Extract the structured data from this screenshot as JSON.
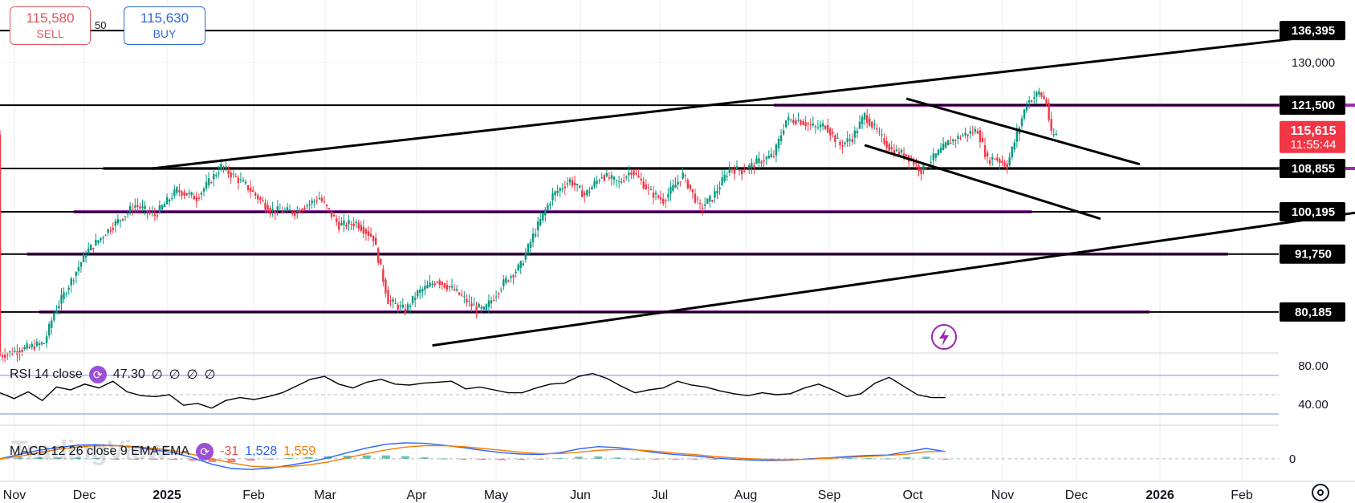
{
  "trade": {
    "sell_price": "115,580",
    "sell_label": "SELL",
    "buy_price": "115,630",
    "buy_label": "BUY",
    "spread": "50"
  },
  "chart_data": {
    "type": "candlestick",
    "y_range": [
      72000,
      142500
    ],
    "x_labels": [
      "Nov",
      "Dec",
      "2025",
      "Feb",
      "Mar",
      "Apr",
      "May",
      "Jun",
      "Jul",
      "Aug",
      "Sep",
      "Oct",
      "Nov",
      "Dec",
      "2026",
      "Feb"
    ],
    "x_bold_labels": [
      "2025",
      "2026"
    ],
    "y_ticks": [
      130000,
      91750
    ],
    "y_tick_labels": [
      "130,000",
      "91,750"
    ],
    "horizontal_levels": [
      {
        "value": 136395,
        "label": "136,395"
      },
      {
        "value": 121500,
        "label": "121,500"
      },
      {
        "value": 108855,
        "label": "108,855"
      },
      {
        "value": 100195,
        "label": "100,195"
      },
      {
        "value": 91750,
        "label": "91,750"
      },
      {
        "value": 80185,
        "label": "80,185"
      }
    ],
    "current_price": {
      "value": 115615,
      "label": "115,615",
      "countdown": "11:55:44",
      "color": "#f23645"
    },
    "candle_anchors": [
      [
        0,
        71500
      ],
      [
        18,
        74000
      ],
      [
        22,
        80000
      ],
      [
        35,
        92000
      ],
      [
        45,
        97000
      ],
      [
        55,
        101500
      ],
      [
        63,
        99500
      ],
      [
        72,
        104500
      ],
      [
        80,
        103000
      ],
      [
        90,
        109200
      ],
      [
        100,
        105500
      ],
      [
        110,
        100500
      ],
      [
        120,
        100200
      ],
      [
        130,
        103000
      ],
      [
        138,
        97500
      ],
      [
        145,
        98000
      ],
      [
        152,
        95000
      ],
      [
        158,
        82500
      ],
      [
        165,
        80500
      ],
      [
        170,
        84000
      ],
      [
        178,
        86500
      ],
      [
        185,
        84500
      ],
      [
        192,
        81500
      ],
      [
        197,
        80500
      ],
      [
        205,
        86000
      ],
      [
        212,
        89500
      ],
      [
        218,
        96500
      ],
      [
        225,
        103500
      ],
      [
        232,
        106500
      ],
      [
        238,
        103500
      ],
      [
        245,
        107500
      ],
      [
        252,
        106000
      ],
      [
        257,
        108500
      ],
      [
        265,
        104000
      ],
      [
        270,
        102500
      ],
      [
        278,
        107500
      ],
      [
        285,
        101000
      ],
      [
        290,
        103000
      ],
      [
        297,
        108800
      ],
      [
        302,
        108400
      ],
      [
        310,
        110500
      ],
      [
        315,
        111500
      ],
      [
        320,
        118500
      ],
      [
        325,
        118500
      ],
      [
        332,
        117000
      ],
      [
        336,
        117500
      ],
      [
        342,
        113500
      ],
      [
        347,
        115000
      ],
      [
        352,
        119500
      ],
      [
        358,
        115500
      ],
      [
        363,
        112500
      ],
      [
        369,
        111500
      ],
      [
        375,
        108500
      ],
      [
        380,
        111000
      ],
      [
        386,
        114000
      ],
      [
        392,
        115500
      ],
      [
        398,
        116500
      ],
      [
        402,
        110500
      ],
      [
        405,
        111000
      ],
      [
        410,
        109500
      ],
      [
        418,
        122000
      ],
      [
        423,
        124000
      ],
      [
        426,
        122000
      ],
      [
        428,
        115500
      ],
      [
        430,
        115615
      ]
    ],
    "channels": [
      {
        "from": [
          62,
          108855
        ],
        "to": [
          526,
          134700
        ]
      },
      {
        "from": [
          369,
          122800
        ],
        "to": [
          464,
          109700
        ]
      },
      {
        "from": [
          352,
          113500
        ],
        "to": [
          448,
          98800
        ]
      },
      {
        "from": [
          176,
          73500
        ],
        "to": [
          604,
          103700
        ]
      }
    ],
    "zones": [
      {
        "from": 315,
        "to": 604,
        "value": 121500
      },
      {
        "from": 42,
        "to": 558,
        "value": 108855
      },
      {
        "from": 30,
        "to": 420,
        "value": 100195
      },
      {
        "from": 11,
        "to": 500,
        "value": 91750
      },
      {
        "from": 16,
        "to": 468,
        "value": 80185
      }
    ],
    "rsi": {
      "title": "RSI 14 close",
      "value": "47.30",
      "placeholders": [
        "∅",
        "∅",
        "∅",
        "∅"
      ],
      "levels": [
        70,
        50,
        30
      ],
      "scale_labels": [
        "80.00",
        "40.00"
      ],
      "range": [
        20,
        90
      ],
      "values": [
        52,
        46,
        53,
        44,
        58,
        55,
        61,
        57,
        64,
        53,
        49,
        48,
        50,
        39,
        41,
        36,
        44,
        47,
        45,
        48,
        52,
        59,
        66,
        69,
        61,
        57,
        63,
        66,
        61,
        60,
        62,
        63,
        64,
        56,
        58,
        55,
        52,
        52,
        57,
        61,
        62,
        69,
        72,
        67,
        59,
        52,
        55,
        57,
        64,
        60,
        58,
        54,
        51,
        49,
        52,
        50,
        51,
        57,
        61,
        55,
        48,
        51,
        62,
        68,
        59,
        50,
        47,
        47
      ]
    },
    "macd": {
      "title": "MACD 12 26 close 9 EMA EMA",
      "hist_value": "-31",
      "macd_value": "1,528",
      "signal_value": "1,559",
      "scale_labels": [
        "0"
      ],
      "range": [
        -4500,
        6500
      ],
      "macd": [
        0,
        900,
        1800,
        2400,
        2900,
        3000,
        2800,
        2500,
        1900,
        1300,
        200,
        -1200,
        -2100,
        -2300,
        -2000,
        -1400,
        -700,
        200,
        1300,
        2300,
        3100,
        3400,
        3300,
        2900,
        2400,
        1800,
        1300,
        1000,
        900,
        1300,
        2100,
        2600,
        2400,
        1900,
        1300,
        900,
        600,
        200,
        -100,
        -300,
        -400,
        -300,
        0,
        200,
        500,
        700,
        800,
        1500,
        2200,
        1528
      ],
      "signal": [
        0,
        500,
        1300,
        2000,
        2500,
        2800,
        2800,
        2600,
        2200,
        1700,
        900,
        0,
        -900,
        -1600,
        -1800,
        -1700,
        -1300,
        -700,
        200,
        1100,
        1900,
        2500,
        2800,
        2800,
        2600,
        2200,
        1800,
        1400,
        1100,
        1100,
        1400,
        1800,
        2000,
        1900,
        1600,
        1200,
        900,
        500,
        200,
        0,
        -200,
        -200,
        -100,
        100,
        300,
        500,
        700,
        1000,
        1500,
        1559
      ]
    },
    "colors": {
      "up": "#089981",
      "down": "#f23645",
      "zone": "#9c27b0",
      "channel": "#000000",
      "rsi": "#000000",
      "macd_line": "#2962ff",
      "signal_line": "#f57c00"
    }
  },
  "watermark": "TradingView",
  "icons": {
    "indicator": "indicator-icon",
    "alert": "lightning-icon",
    "settings": "settings-icon"
  }
}
